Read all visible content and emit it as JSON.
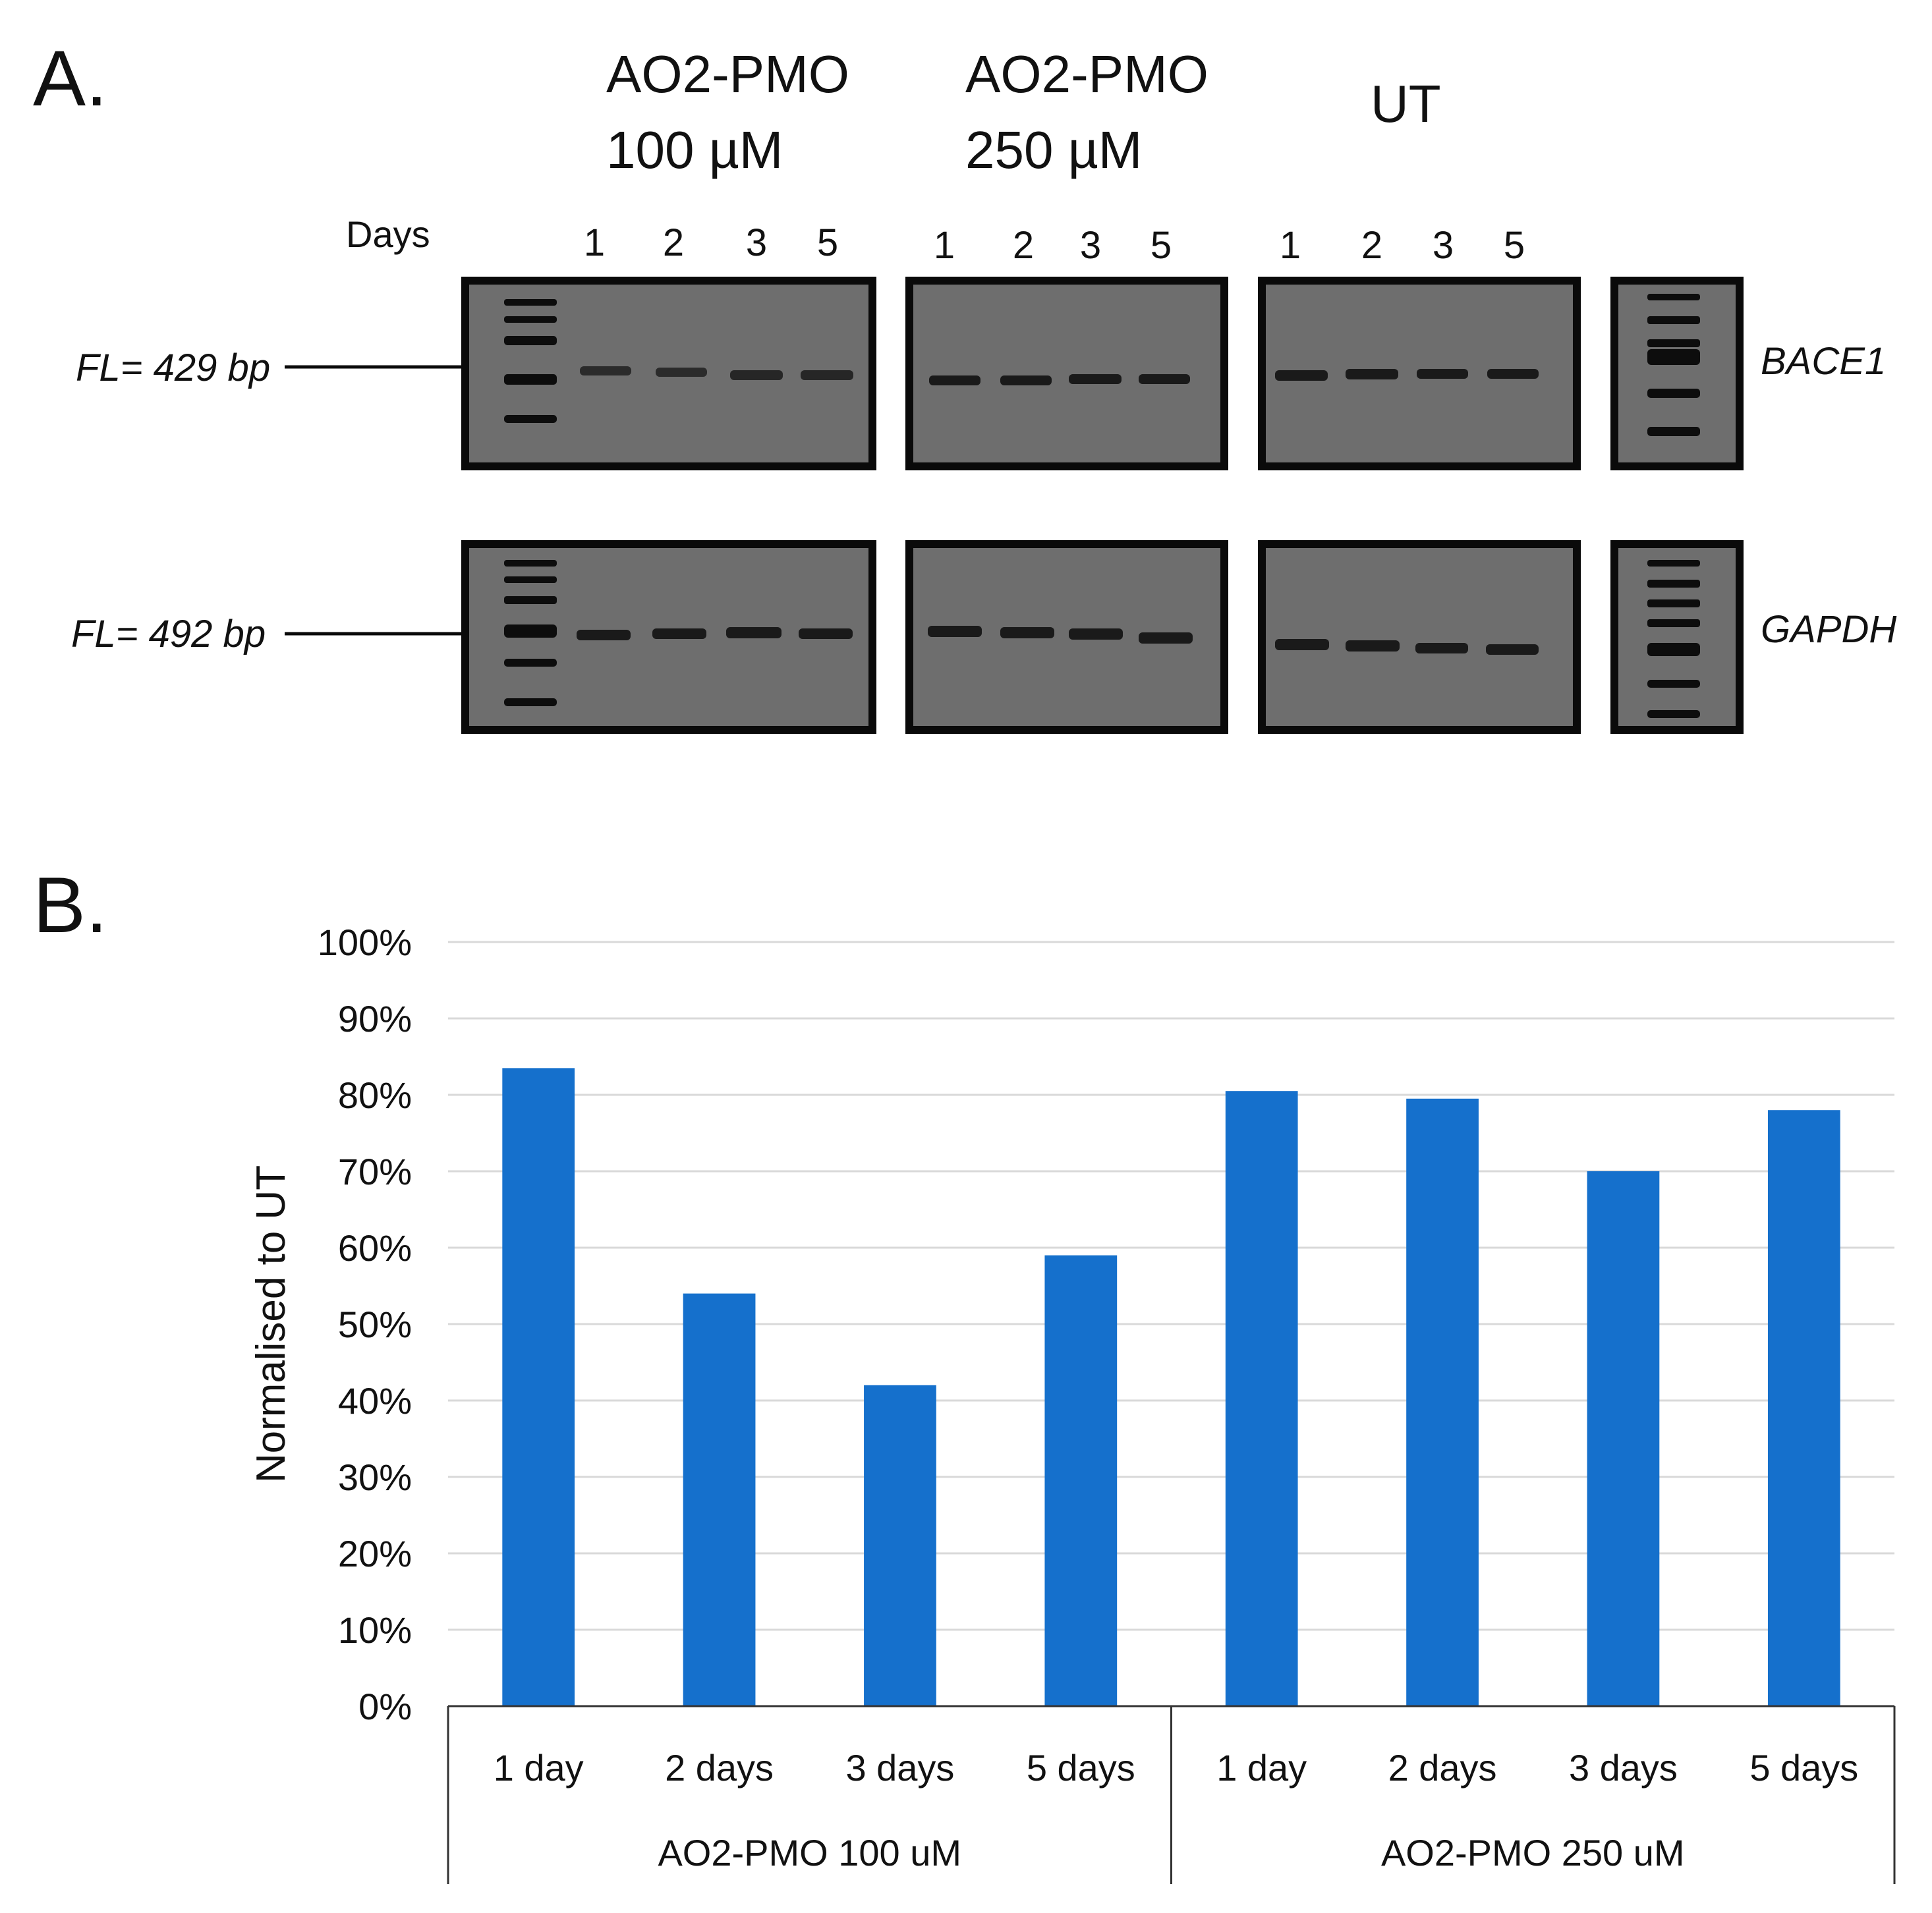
{
  "panel_a": {
    "label": "A.",
    "groups": [
      {
        "name": "AO2-PMO",
        "conc": "100 µM",
        "lanes": [
          "1",
          "2",
          "3",
          "5"
        ]
      },
      {
        "name": "AO2-PMO",
        "conc": "250 µM",
        "lanes": [
          "1",
          "2",
          "3",
          "5"
        ]
      },
      {
        "name": "UT",
        "conc": "",
        "lanes": [
          "1",
          "2",
          "3",
          "5"
        ]
      }
    ],
    "days_label": "Days",
    "rows": [
      {
        "gene": "BACE1",
        "size_label": "FL= 429 bp"
      },
      {
        "gene": "GAPDH",
        "size_label": "FL= 492 bp"
      }
    ],
    "colors": {
      "gel": "#6e6e6e",
      "frame": "#0a0a0a",
      "band": "#1a1a1a"
    }
  },
  "panel_b": {
    "label": "B."
  },
  "chart_data": {
    "type": "bar",
    "title": "",
    "ylabel": "Normalised to UT",
    "xlabel": "",
    "ylim": [
      0,
      100
    ],
    "yticks": [
      0,
      10,
      20,
      30,
      40,
      50,
      60,
      70,
      80,
      90,
      100
    ],
    "ytick_labels": [
      "0%",
      "10%",
      "20%",
      "30%",
      "40%",
      "50%",
      "60%",
      "70%",
      "80%",
      "90%",
      "100%"
    ],
    "categories": [
      "1 day",
      "2 days",
      "3 days",
      "5 days",
      "1 day",
      "2 days",
      "3 days",
      "5 days"
    ],
    "groups": [
      {
        "label": "AO2-PMO 100 uM",
        "count": 4
      },
      {
        "label": "AO2-PMO 250 uM",
        "count": 4
      }
    ],
    "values": [
      83.5,
      54,
      42,
      59,
      80.5,
      79.5,
      70,
      78
    ],
    "grid": true,
    "bar_color": "#1570cc"
  }
}
